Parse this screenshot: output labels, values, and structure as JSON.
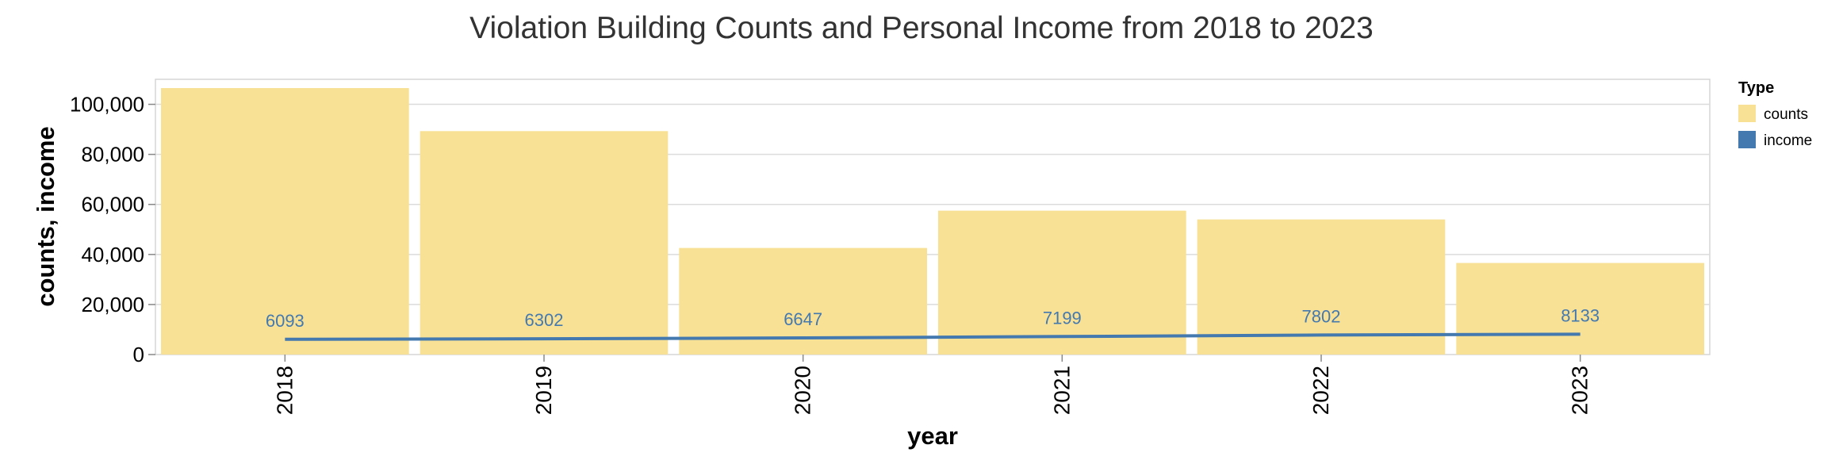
{
  "chart_data": {
    "type": "bar",
    "title": "Violation Building Counts and Personal Income from 2018 to 2023",
    "xlabel": "year",
    "ylabel": "counts, income",
    "categories": [
      "2018",
      "2019",
      "2020",
      "2021",
      "2022",
      "2023"
    ],
    "y_ticks": [
      "0",
      "20,000",
      "40,000",
      "60,000",
      "80,000",
      "100,000"
    ],
    "y_tick_values": [
      0,
      20000,
      40000,
      60000,
      80000,
      100000
    ],
    "ylim": [
      0,
      110000
    ],
    "grid": true,
    "legend": {
      "title": "Type",
      "placement": "top-right",
      "items": [
        {
          "label": "counts",
          "color": "#f8e195"
        },
        {
          "label": "income",
          "color": "#4479b0"
        }
      ]
    },
    "series": [
      {
        "name": "counts",
        "type": "bar",
        "color": "#f8e195",
        "values": [
          106500,
          89300,
          42600,
          57500,
          54000,
          36600
        ]
      },
      {
        "name": "income",
        "type": "line",
        "color": "#4479b0",
        "values": [
          6093,
          6302,
          6647,
          7199,
          7802,
          8133
        ],
        "labels": [
          "6093",
          "6302",
          "6647",
          "7199",
          "7802",
          "8133"
        ]
      }
    ]
  }
}
